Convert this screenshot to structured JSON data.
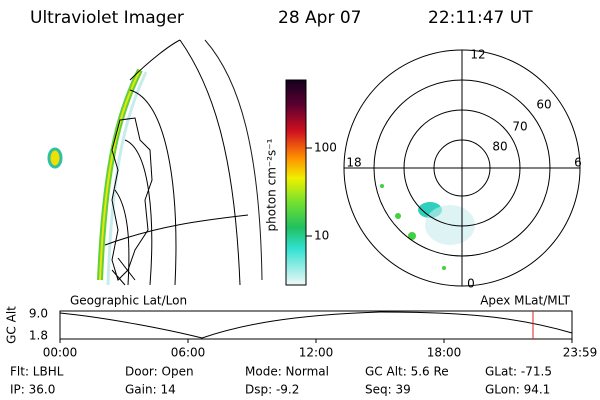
{
  "header": {
    "title": "Ultraviolet Imager",
    "date": "28 Apr 07",
    "time": "22:11:47 UT"
  },
  "colorbar": {
    "label": "photon cm⁻²s⁻¹",
    "ticks": [
      "100",
      "10"
    ]
  },
  "polar": {
    "mlt_labels": [
      "12",
      "18",
      "6",
      "0"
    ],
    "mlat_labels": [
      "60",
      "70",
      "80"
    ]
  },
  "panel_labels": {
    "left": "Geographic Lat/Lon",
    "right": "Apex MLat/MLT"
  },
  "altitude_plot": {
    "y_label": "GC Alt",
    "y_ticks": [
      "9.0",
      "1.8"
    ],
    "x_ticks": [
      "00:00",
      "06:00",
      "12:00",
      "18:00",
      "23:59"
    ]
  },
  "footer": [
    [
      "Flt: LBHL",
      "IP: 36.0"
    ],
    [
      "Door: Open",
      "Gain: 14"
    ],
    [
      "Mode: Normal",
      "Dsp:   -9.2"
    ],
    [
      "GC Alt: 5.6 Re",
      "Seq: 39"
    ],
    [
      "GLat: -71.5",
      "GLon:  94.1"
    ]
  ]
}
